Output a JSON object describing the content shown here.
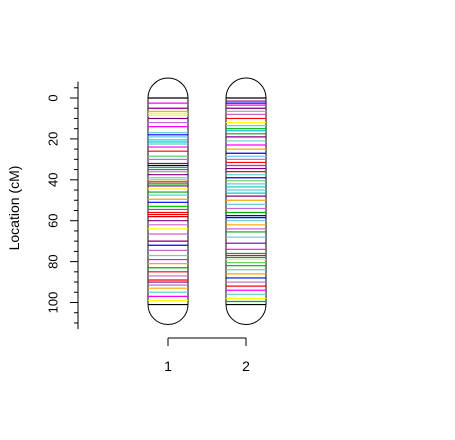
{
  "chart_data": {
    "type": "genetic-map",
    "ylabel": "Location (cM)",
    "yticks": [
      0,
      20,
      40,
      60,
      80,
      100
    ],
    "ylim": [
      -8,
      113
    ],
    "chromosomes": [
      {
        "name": "1",
        "length": 101,
        "markers": [
          {
            "pos": 0,
            "color": "#000000"
          },
          {
            "pos": 2.5,
            "color": "#ff00ff"
          },
          {
            "pos": 5,
            "color": "#800080"
          },
          {
            "pos": 6.5,
            "color": "#ffa500"
          },
          {
            "pos": 7.5,
            "color": "#ffff00"
          },
          {
            "pos": 8.5,
            "color": "#ffff00"
          },
          {
            "pos": 10,
            "color": "#800080"
          },
          {
            "pos": 12,
            "color": "#cc66cc"
          },
          {
            "pos": 14,
            "color": "#ff00ff"
          },
          {
            "pos": 17,
            "color": "#66cccc"
          },
          {
            "pos": 18,
            "color": "#0000ff"
          },
          {
            "pos": 19,
            "color": "#66ccff"
          },
          {
            "pos": 20.5,
            "color": "#00cccc"
          },
          {
            "pos": 21.5,
            "color": "#00cccc"
          },
          {
            "pos": 22.5,
            "color": "#66cccc"
          },
          {
            "pos": 24,
            "color": "#ff00ff"
          },
          {
            "pos": 26,
            "color": "#ff0000"
          },
          {
            "pos": 28.5,
            "color": "#66cc66"
          },
          {
            "pos": 30,
            "color": "#cc66cc"
          },
          {
            "pos": 32,
            "color": "#800080"
          },
          {
            "pos": 33,
            "color": "#000000"
          },
          {
            "pos": 34,
            "color": "#00aaaa"
          },
          {
            "pos": 35,
            "color": "#ff00ff"
          },
          {
            "pos": 36,
            "color": "#66cc66"
          },
          {
            "pos": 37.5,
            "color": "#800080"
          },
          {
            "pos": 39,
            "color": "#66cccc"
          },
          {
            "pos": 40,
            "color": "#ffa500"
          },
          {
            "pos": 41,
            "color": "#a52a2a"
          },
          {
            "pos": 42,
            "color": "#00aa00"
          },
          {
            "pos": 43,
            "color": "#800080"
          },
          {
            "pos": 44.5,
            "color": "#ffff00"
          },
          {
            "pos": 46,
            "color": "#00aa00"
          },
          {
            "pos": 47.5,
            "color": "#66cccc"
          },
          {
            "pos": 49.5,
            "color": "#ffa500"
          },
          {
            "pos": 51,
            "color": "#0000ff"
          },
          {
            "pos": 53,
            "color": "#00cc00"
          },
          {
            "pos": 54.5,
            "color": "#ff00ff"
          },
          {
            "pos": 56,
            "color": "#ff0000"
          },
          {
            "pos": 57,
            "color": "#ff0000"
          },
          {
            "pos": 58,
            "color": "#cc0000"
          },
          {
            "pos": 60,
            "color": "#800080"
          },
          {
            "pos": 62,
            "color": "#cc66cc"
          },
          {
            "pos": 64,
            "color": "#ffff00"
          },
          {
            "pos": 66.5,
            "color": "#cc66cc"
          },
          {
            "pos": 70,
            "color": "#800080"
          },
          {
            "pos": 72,
            "color": "#0000ff"
          },
          {
            "pos": 74.5,
            "color": "#cc66cc"
          },
          {
            "pos": 77,
            "color": "#66cccc"
          },
          {
            "pos": 79,
            "color": "#ff00ff"
          },
          {
            "pos": 81,
            "color": "#ffa500"
          },
          {
            "pos": 83,
            "color": "#00aa00"
          },
          {
            "pos": 85,
            "color": "#ff0000"
          },
          {
            "pos": 87,
            "color": "#cc66cc"
          },
          {
            "pos": 89,
            "color": "#ff0000"
          },
          {
            "pos": 90,
            "color": "#800080"
          },
          {
            "pos": 91.5,
            "color": "#cc66cc"
          },
          {
            "pos": 93,
            "color": "#ffa500"
          },
          {
            "pos": 95,
            "color": "#66cccc"
          },
          {
            "pos": 97,
            "color": "#ff00ff"
          },
          {
            "pos": 99,
            "color": "#ffff00"
          },
          {
            "pos": 101,
            "color": "#000000"
          }
        ]
      },
      {
        "name": "2",
        "length": 101,
        "markers": [
          {
            "pos": 0,
            "color": "#000000"
          },
          {
            "pos": 1.5,
            "color": "#800080"
          },
          {
            "pos": 2.5,
            "color": "#0000ff"
          },
          {
            "pos": 3.5,
            "color": "#ff00ff"
          },
          {
            "pos": 5,
            "color": "#800080"
          },
          {
            "pos": 6.5,
            "color": "#66cc66"
          },
          {
            "pos": 8,
            "color": "#cc66cc"
          },
          {
            "pos": 10,
            "color": "#ff0000"
          },
          {
            "pos": 12,
            "color": "#ffff00"
          },
          {
            "pos": 13.5,
            "color": "#66cccc"
          },
          {
            "pos": 15,
            "color": "#00aa00"
          },
          {
            "pos": 16,
            "color": "#00cccc"
          },
          {
            "pos": 17.5,
            "color": "#00aa00"
          },
          {
            "pos": 19,
            "color": "#800080"
          },
          {
            "pos": 21,
            "color": "#66cccc"
          },
          {
            "pos": 23,
            "color": "#ff00ff"
          },
          {
            "pos": 25,
            "color": "#ffa500"
          },
          {
            "pos": 27,
            "color": "#0000ff"
          },
          {
            "pos": 28.5,
            "color": "#66ccff"
          },
          {
            "pos": 30,
            "color": "#cc66cc"
          },
          {
            "pos": 31.5,
            "color": "#ff0000"
          },
          {
            "pos": 33,
            "color": "#ff00ff"
          },
          {
            "pos": 34.5,
            "color": "#800080"
          },
          {
            "pos": 36,
            "color": "#ff0000"
          },
          {
            "pos": 37.5,
            "color": "#66cccc"
          },
          {
            "pos": 39,
            "color": "#0000ff"
          },
          {
            "pos": 40.5,
            "color": "#66cc66"
          },
          {
            "pos": 42,
            "color": "#66cccc"
          },
          {
            "pos": 43.5,
            "color": "#00cccc"
          },
          {
            "pos": 45,
            "color": "#66cccc"
          },
          {
            "pos": 46.5,
            "color": "#00cccc"
          },
          {
            "pos": 48,
            "color": "#800080"
          },
          {
            "pos": 50,
            "color": "#ffa500"
          },
          {
            "pos": 52,
            "color": "#66cccc"
          },
          {
            "pos": 54,
            "color": "#cc66cc"
          },
          {
            "pos": 56,
            "color": "#00aa00"
          },
          {
            "pos": 57.5,
            "color": "#0000ff"
          },
          {
            "pos": 58.5,
            "color": "#0000ff"
          },
          {
            "pos": 60,
            "color": "#66cccc"
          },
          {
            "pos": 62,
            "color": "#ffa500"
          },
          {
            "pos": 64,
            "color": "#cc66cc"
          },
          {
            "pos": 65.5,
            "color": "#00aa00"
          },
          {
            "pos": 68,
            "color": "#66cccc"
          },
          {
            "pos": 71,
            "color": "#800080"
          },
          {
            "pos": 74,
            "color": "#ff00ff"
          },
          {
            "pos": 76,
            "color": "#00aa00"
          },
          {
            "pos": 77,
            "color": "#a52a2a"
          },
          {
            "pos": 78,
            "color": "#00aa00"
          },
          {
            "pos": 79,
            "color": "#ffff00"
          },
          {
            "pos": 80.5,
            "color": "#66cc66"
          },
          {
            "pos": 82,
            "color": "#00aa00"
          },
          {
            "pos": 84,
            "color": "#66cccc"
          },
          {
            "pos": 86,
            "color": "#ffa500"
          },
          {
            "pos": 88,
            "color": "#0000ff"
          },
          {
            "pos": 90,
            "color": "#cc66cc"
          },
          {
            "pos": 92,
            "color": "#ff0000"
          },
          {
            "pos": 94,
            "color": "#ff00ff"
          },
          {
            "pos": 96,
            "color": "#66cccc"
          },
          {
            "pos": 98,
            "color": "#ffff00"
          },
          {
            "pos": 99.5,
            "color": "#00aa00"
          },
          {
            "pos": 101,
            "color": "#000000"
          }
        ]
      }
    ]
  }
}
